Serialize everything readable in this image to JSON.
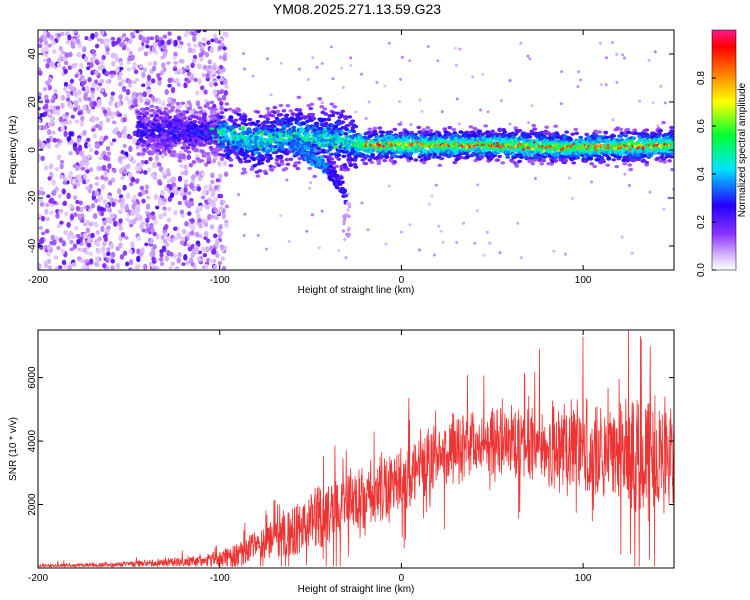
{
  "title": "YM08.2025.271.13.59.G23",
  "chart_data": [
    {
      "type": "heatmap",
      "name": "spectrogram",
      "xlabel": "Height of straight line (km)",
      "ylabel": "Frequency (Hz)",
      "xlim": [
        -200,
        150
      ],
      "ylim": [
        -50,
        50
      ],
      "xticks": [
        -200,
        -100,
        0,
        100
      ],
      "yticks": [
        -40,
        -20,
        0,
        20,
        40
      ],
      "colorbar": {
        "label": "Normalized spectral amplitude",
        "range": [
          0,
          1
        ],
        "ticks": [
          "0.0",
          "0.2",
          "0.4",
          "0.6",
          "0.8"
        ],
        "colormap": "rainbow (white-violet-blue-cyan-green-yellow-red-magenta)"
      },
      "description_of_signal": {
        "noise_region_x": [
          -200,
          -100
        ],
        "ridge_center_hz": [
          {
            "x": -140,
            "y": 8
          },
          {
            "x": -120,
            "y": 8
          },
          {
            "x": -100,
            "y": 7
          },
          {
            "x": -80,
            "y": 3
          },
          {
            "x": -60,
            "y": 6
          },
          {
            "x": -40,
            "y": 5
          },
          {
            "x": -20,
            "y": 2
          },
          {
            "x": 0,
            "y": 2
          },
          {
            "x": 50,
            "y": 2
          },
          {
            "x": 100,
            "y": 1
          },
          {
            "x": 150,
            "y": 2
          }
        ],
        "branch_descending": [
          {
            "x": -60,
            "y": 3
          },
          {
            "x": -45,
            "y": -5
          },
          {
            "x": -35,
            "y": -13
          },
          {
            "x": -30,
            "y": -20
          }
        ],
        "peak_amplitude_region_x": [
          -20,
          150
        ]
      }
    },
    {
      "type": "line",
      "name": "snr",
      "xlabel": "Height of straight line (km)",
      "ylabel": "SNR (10 * v/v)",
      "xlim": [
        -200,
        150
      ],
      "ylim": [
        0,
        7500
      ],
      "xticks": [
        -200,
        -100,
        0,
        100
      ],
      "yticks": [
        2000,
        4000,
        6000
      ],
      "color": "#ee3333",
      "envelope": {
        "x": [
          -200,
          -150,
          -120,
          -100,
          -90,
          -80,
          -70,
          -60,
          -50,
          -40,
          -30,
          -20,
          -10,
          0,
          10,
          20,
          30,
          40,
          50,
          60,
          70,
          80,
          90,
          100,
          110,
          120,
          130,
          140,
          150
        ],
        "mean": [
          60,
          120,
          200,
          300,
          450,
          650,
          800,
          1100,
          1500,
          1750,
          2000,
          2200,
          2450,
          2800,
          3200,
          3550,
          3800,
          3900,
          3950,
          4000,
          4000,
          3900,
          3850,
          3750,
          3600,
          3600,
          3700,
          3500,
          3600
        ],
        "spread": [
          60,
          80,
          150,
          250,
          400,
          550,
          650,
          800,
          1000,
          1000,
          1000,
          1000,
          1000,
          1000,
          1000,
          1000,
          1000,
          1000,
          1000,
          1100,
          1200,
          1300,
          1400,
          1400,
          1400,
          1500,
          1700,
          1800,
          1800
        ]
      },
      "notable_peaks": [
        {
          "x": 125,
          "y": 7500
        },
        {
          "x": 76,
          "y": 6900
        },
        {
          "x": 137,
          "y": 7000
        },
        {
          "x": -15,
          "y": 4300
        }
      ]
    }
  ]
}
